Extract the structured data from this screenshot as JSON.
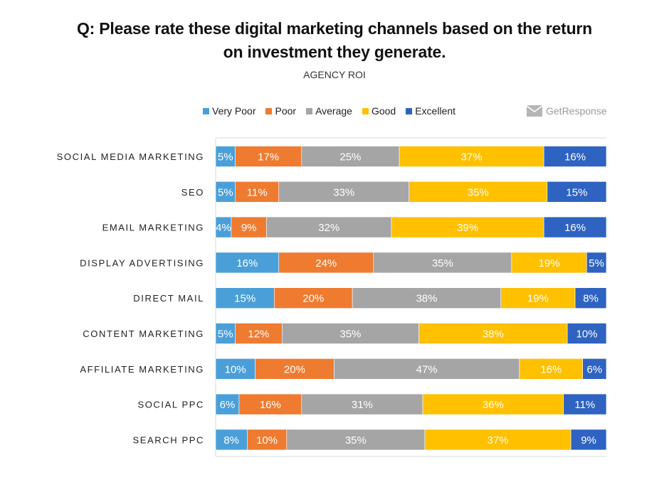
{
  "title_line1": "Q: Please rate these digital marketing channels based on the return",
  "title_line2": "on investment they generate.",
  "subtitle": "AGENCY ROI",
  "brand": "GetResponse",
  "legend": [
    {
      "name": "Very Poor",
      "color": "#4a9fd8"
    },
    {
      "name": "Poor",
      "color": "#ee7b30"
    },
    {
      "name": "Average",
      "color": "#a5a5a5"
    },
    {
      "name": "Good",
      "color": "#ffc000"
    },
    {
      "name": "Excellent",
      "color": "#2e63c1"
    }
  ],
  "chart_data": {
    "type": "bar",
    "orientation": "horizontal",
    "stacked": true,
    "categories": [
      "SOCIAL MEDIA MARKETING",
      "SEO",
      "EMAIL MARKETING",
      "DISPLAY ADVERTISING",
      "DIRECT MAIL",
      "CONTENT MARKETING",
      "AFFILIATE MARKETING",
      "SOCIAL PPC",
      "SEARCH PPC"
    ],
    "series": [
      {
        "name": "Very Poor",
        "values": [
          5,
          5,
          4,
          16,
          15,
          5,
          10,
          6,
          8
        ],
        "color": "#4a9fd8"
      },
      {
        "name": "Poor",
        "values": [
          17,
          11,
          9,
          24,
          20,
          12,
          20,
          16,
          10
        ],
        "color": "#ee7b30"
      },
      {
        "name": "Average",
        "values": [
          25,
          33,
          32,
          35,
          38,
          35,
          47,
          31,
          35
        ],
        "color": "#a5a5a5"
      },
      {
        "name": "Good",
        "values": [
          37,
          35,
          39,
          19,
          19,
          38,
          16,
          36,
          37
        ],
        "color": "#ffc000"
      },
      {
        "name": "Excellent",
        "values": [
          16,
          15,
          16,
          5,
          8,
          10,
          6,
          11,
          9
        ],
        "color": "#2e63c1"
      }
    ],
    "value_suffix": "%",
    "legend_position": "top",
    "grid": false
  }
}
